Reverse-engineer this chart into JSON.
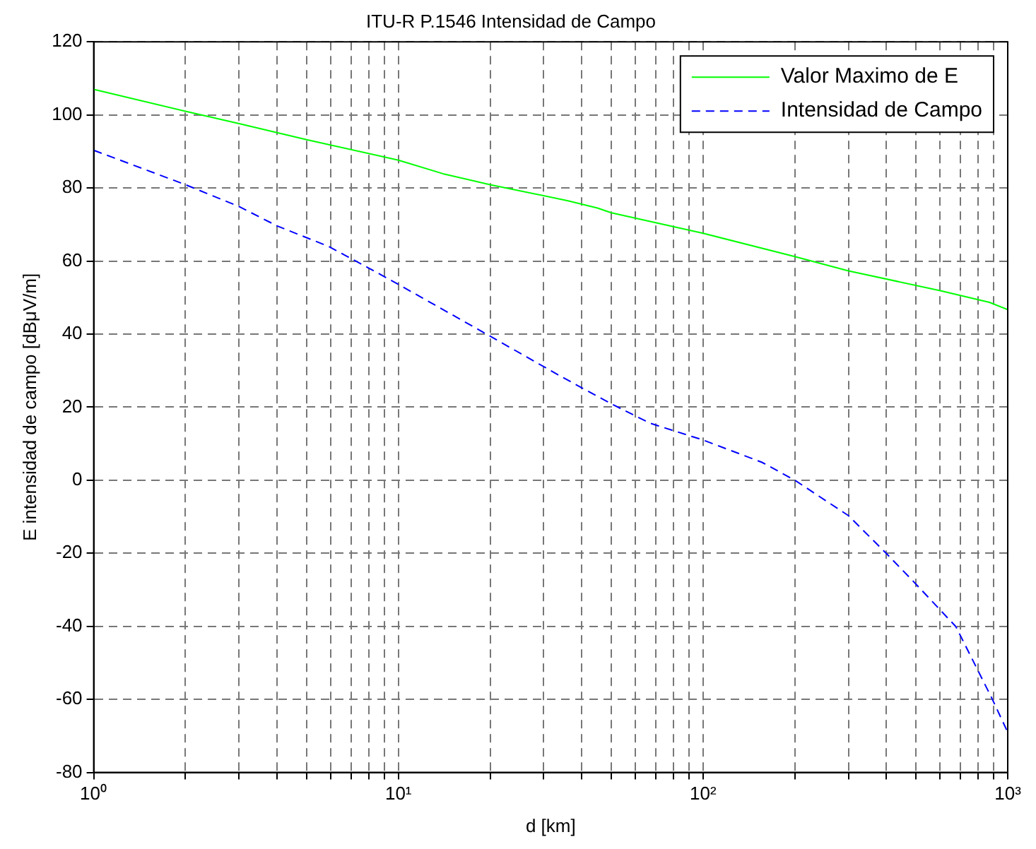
{
  "chart_data": {
    "type": "line",
    "title": "ITU-R P.1546 Intensidad de Campo",
    "xlabel": "d [km]",
    "ylabel": "E intensidad de campo [dBμV/m]",
    "log": "x",
    "grid": true,
    "legend": "top right",
    "marker": "none",
    "xlim": [
      1,
      1000
    ],
    "ylim": [
      -80,
      120
    ],
    "xticks": [
      {
        "value": 1,
        "label": "10⁰"
      },
      {
        "value": 2,
        "label": null
      },
      {
        "value": 3,
        "label": null
      },
      {
        "value": 4,
        "label": null
      },
      {
        "value": 5,
        "label": null
      },
      {
        "value": 6,
        "label": null
      },
      {
        "value": 7,
        "label": null
      },
      {
        "value": 8,
        "label": null
      },
      {
        "value": 9,
        "label": null
      },
      {
        "value": 10,
        "label": "10¹"
      },
      {
        "value": 20,
        "label": null
      },
      {
        "value": 30,
        "label": null
      },
      {
        "value": 40,
        "label": null
      },
      {
        "value": 50,
        "label": null
      },
      {
        "value": 60,
        "label": null
      },
      {
        "value": 70,
        "label": null
      },
      {
        "value": 80,
        "label": null
      },
      {
        "value": 90,
        "label": null
      },
      {
        "value": 100,
        "label": "10²"
      },
      {
        "value": 200,
        "label": null
      },
      {
        "value": 300,
        "label": null
      },
      {
        "value": 400,
        "label": null
      },
      {
        "value": 500,
        "label": null
      },
      {
        "value": 600,
        "label": null
      },
      {
        "value": 700,
        "label": null
      },
      {
        "value": 800,
        "label": null
      },
      {
        "value": 900,
        "label": null
      },
      {
        "value": 1000,
        "label": "10³"
      }
    ],
    "yticks": [
      -80,
      -60,
      -40,
      -20,
      0,
      20,
      40,
      60,
      80,
      100,
      120
    ],
    "series": [
      {
        "name": "Valor Maximo de E",
        "color": "#00ff00",
        "line_style": "solid",
        "x": [
          1,
          2,
          3,
          5,
          10,
          14,
          20,
          36,
          45,
          50,
          100,
          200,
          300,
          600,
          870,
          1000
        ],
        "values": [
          107,
          101,
          97.6,
          93.2,
          87.6,
          83.9,
          80.9,
          76.5,
          74.5,
          73.2,
          67.6,
          61.2,
          57.3,
          51.9,
          48.7,
          46.7
        ]
      },
      {
        "name": "Intensidad de Campo",
        "color": "#0000ff",
        "line_style": "dashed",
        "x": [
          1,
          1.16,
          2,
          3,
          4,
          5.9,
          7.9,
          10,
          18.8,
          34,
          50,
          67,
          100,
          156,
          200,
          300,
          400,
          490,
          676,
          887,
          1000
        ],
        "values": [
          90.3,
          88.3,
          80.9,
          74.9,
          69.6,
          64,
          58.3,
          53.6,
          40.7,
          28.5,
          20.9,
          15.6,
          11,
          4.9,
          0,
          -9.7,
          -20.1,
          -27.7,
          -40.1,
          -59.7,
          -69
        ]
      }
    ]
  }
}
